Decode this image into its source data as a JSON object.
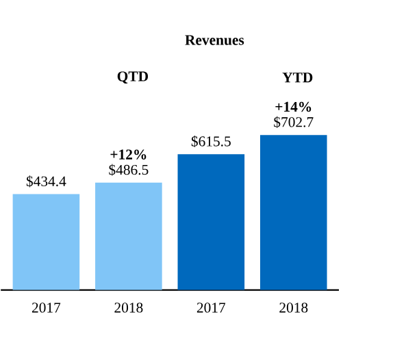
{
  "chart_data": {
    "type": "bar",
    "title": "Revenues",
    "categories": [
      "2017",
      "2018",
      "2017",
      "2018"
    ],
    "values": [
      434.4,
      486.5,
      615.5,
      702.7
    ],
    "colors": [
      "#80c5f7",
      "#80c5f7",
      "#0069bd",
      "#0069bd"
    ],
    "value_labels": [
      "$434.4",
      "$486.5",
      "$615.5",
      "$702.7"
    ],
    "annotations": [
      "QTD",
      "YTD",
      "+12%",
      "+14%"
    ]
  }
}
